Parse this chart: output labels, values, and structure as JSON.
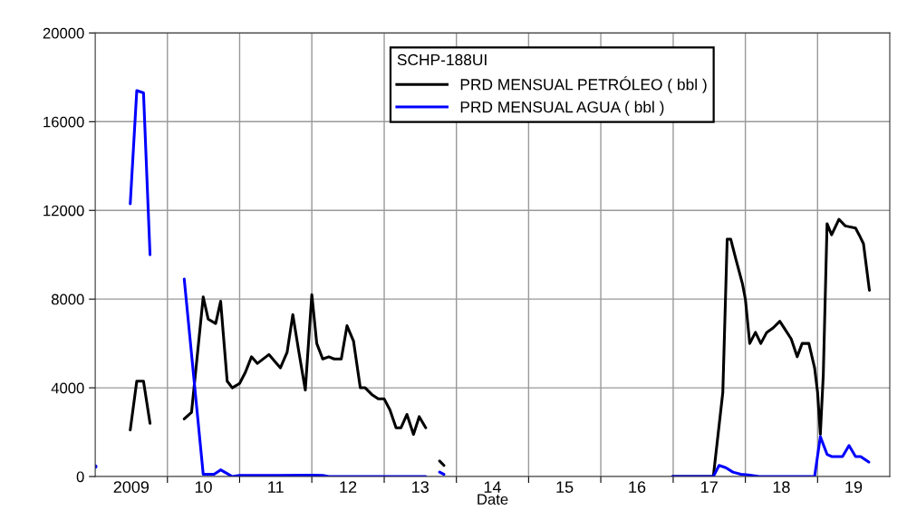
{
  "chart_data": {
    "type": "line",
    "xlabel": "Date",
    "legend_title": "SCHP-188UI",
    "legend": "top",
    "grid": true,
    "line_style": "solid",
    "marker": "none",
    "xlim": [
      "2009-01-01",
      "2020-01-01"
    ],
    "ylim": [
      0,
      20000
    ],
    "xticks": [
      {
        "value": "2009-07-02",
        "label": "2009"
      },
      {
        "value": "2010-01-01",
        "label": null
      },
      {
        "value": "2010-07-02",
        "label": "10"
      },
      {
        "value": "2011-01-01",
        "label": null
      },
      {
        "value": "2011-07-02",
        "label": "11"
      },
      {
        "value": "2012-01-01",
        "label": null
      },
      {
        "value": "2012-07-02",
        "label": "12"
      },
      {
        "value": "2013-01-01",
        "label": null
      },
      {
        "value": "2013-07-02",
        "label": "13"
      },
      {
        "value": "2014-01-01",
        "label": null
      },
      {
        "value": "2014-07-02",
        "label": "14"
      },
      {
        "value": "2015-01-01",
        "label": null
      },
      {
        "value": "2015-07-02",
        "label": "15"
      },
      {
        "value": "2016-01-01",
        "label": null
      },
      {
        "value": "2016-07-02",
        "label": "16"
      },
      {
        "value": "2017-01-01",
        "label": null
      },
      {
        "value": "2017-07-02",
        "label": "17"
      },
      {
        "value": "2018-01-01",
        "label": null
      },
      {
        "value": "2018-07-02",
        "label": "18"
      },
      {
        "value": "2019-01-01",
        "label": null
      },
      {
        "value": "2019-07-02",
        "label": "19"
      }
    ],
    "yticks": [
      0,
      4000,
      8000,
      12000,
      16000,
      20000
    ],
    "series": [
      {
        "name": "PRD MENSUAL PETRÓLEO ( bbl )",
        "color": "#000000",
        "x": [
          "2009-06-27",
          "2009-07-30",
          "2009-09-02",
          "2009-10-05",
          "2010-01-01",
          "2010-03-27",
          "2010-05-03",
          "2010-07-01",
          "2010-07-26",
          "2010-09-02",
          "2010-09-27",
          "2010-10-30",
          "2010-11-25",
          "2011-01-01",
          "2011-01-30",
          "2011-03-02",
          "2011-04-01",
          "2011-05-29",
          "2011-06-27",
          "2011-07-26",
          "2011-08-29",
          "2011-09-27",
          "2011-10-26",
          "2011-11-29",
          "2012-01-01",
          "2012-01-26",
          "2012-02-25",
          "2012-03-27",
          "2012-04-23",
          "2012-05-29",
          "2012-06-27",
          "2012-07-30",
          "2012-09-02",
          "2012-09-27",
          "2012-10-30",
          "2012-12-02",
          "2013-01-01",
          "2013-01-30",
          "2013-03-02",
          "2013-03-27",
          "2013-04-26",
          "2013-05-29",
          "2013-06-27",
          "2013-07-30",
          "2013-09-06",
          "2013-10-08",
          "2013-10-30",
          "2014-01-01",
          "2016-12-28",
          "2017-07-23",
          "2017-09-09",
          "2017-10-01",
          "2017-10-19",
          "2017-11-14",
          "2017-12-17",
          "2018-01-01",
          "2018-01-23",
          "2018-02-21",
          "2018-03-20",
          "2018-04-19",
          "2018-05-21",
          "2018-06-24",
          "2018-07-23",
          "2018-08-21",
          "2018-09-20",
          "2018-10-15",
          "2018-11-18",
          "2018-12-17",
          "2019-01-01",
          "2019-01-15",
          "2019-01-30",
          "2019-02-18",
          "2019-03-13",
          "2019-04-19",
          "2019-05-21",
          "2019-07-12",
          "2019-07-30",
          "2019-08-21",
          "2019-09-20"
        ],
        "values": [
          2100,
          4300,
          4300,
          2400,
          null,
          2600,
          2900,
          8100,
          7100,
          6900,
          7900,
          4300,
          4000,
          4200,
          4700,
          5400,
          5100,
          5500,
          5200,
          4900,
          5600,
          7300,
          5700,
          3900,
          8200,
          6000,
          5300,
          5400,
          5300,
          5300,
          6800,
          6100,
          4000,
          4000,
          3700,
          3500,
          3500,
          3000,
          2200,
          2200,
          2800,
          1900,
          2700,
          2200,
          null,
          700,
          500,
          null,
          0,
          0,
          3800,
          10700,
          10700,
          9800,
          8700,
          8000,
          6000,
          6500,
          6000,
          6500,
          6700,
          7000,
          6600,
          6200,
          5400,
          6000,
          6000,
          4900,
          3800,
          1900,
          4600,
          11400,
          10900,
          11600,
          11300,
          11200,
          10900,
          10500,
          8400
        ]
      },
      {
        "name": "PRD MENSUAL AGUA ( bbl )",
        "color": "#0000ff",
        "x": [
          "2009-01-01",
          "2009-03-13",
          "2009-06-27",
          "2009-07-30",
          "2009-09-02",
          "2009-10-05",
          "2010-01-01",
          "2010-03-27",
          "2010-07-01",
          "2010-08-25",
          "2010-09-27",
          "2010-11-25",
          "2011-01-01",
          "2011-07-01",
          "2012-01-01",
          "2012-02-25",
          "2012-03-27",
          "2013-07-30",
          "2013-09-06",
          "2013-10-08",
          "2013-10-30",
          "2014-01-01",
          "2016-12-28",
          "2017-07-23",
          "2017-08-21",
          "2017-09-24",
          "2017-10-30",
          "2017-12-09",
          "2018-01-15",
          "2018-03-13",
          "2018-12-17",
          "2019-01-15",
          "2019-02-18",
          "2019-03-13",
          "2019-05-07",
          "2019-06-09",
          "2019-07-12",
          "2019-08-07",
          "2019-09-17"
        ],
        "values": [
          450,
          null,
          12300,
          17400,
          17300,
          10000,
          null,
          8900,
          100,
          100,
          300,
          0,
          50,
          50,
          60,
          50,
          0,
          0,
          null,
          200,
          100,
          null,
          0,
          0,
          500,
          400,
          200,
          100,
          70,
          0,
          0,
          1800,
          1000,
          900,
          900,
          1400,
          900,
          900,
          650
        ]
      }
    ]
  }
}
